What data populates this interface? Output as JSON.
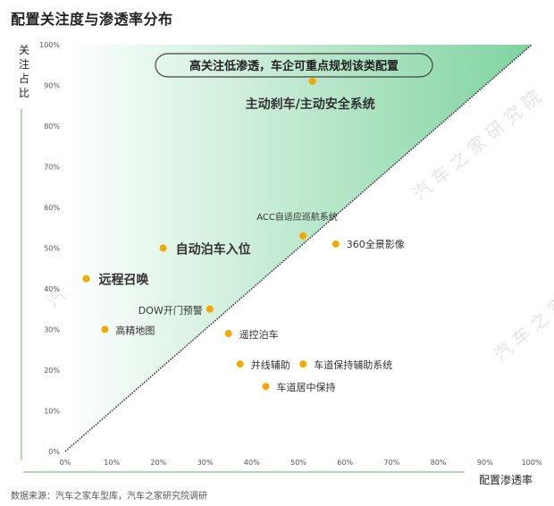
{
  "title": "配置关注度与渗透率分布",
  "source": "数据来源：汽车之家车型库，汽车之家研究院调研",
  "watermark": "汽 车 之 家 研 究 院",
  "colors": {
    "marker": "#f2a900",
    "gradient_light": "#ffffff",
    "gradient_dark": "#7fd3a0",
    "axis": "#6aa86a",
    "diagonal": "#333333"
  },
  "chart_data": {
    "type": "scatter",
    "title": "配置关注度与渗透率分布",
    "xlabel": "配置渗透率",
    "ylabel": "关注占比",
    "xlim": [
      0,
      100
    ],
    "ylim": [
      0,
      100
    ],
    "x_ticks": [
      "0%",
      "10%",
      "20%",
      "30%",
      "40%",
      "50%",
      "60%",
      "70%",
      "80%",
      "90%",
      "100%"
    ],
    "y_ticks": [
      "0%",
      "10%",
      "20%",
      "30%",
      "40%",
      "50%",
      "60%",
      "70%",
      "80%",
      "90%",
      "100%"
    ],
    "callout": "高关注低渗透，车企可重点规划该类配置",
    "points": [
      {
        "name": "主动刹车/主动安全系统",
        "x": 53,
        "y": 91,
        "bold": true
      },
      {
        "name": "ACC自适应巡航系统",
        "x": 51,
        "y": 53,
        "bold": false
      },
      {
        "name": "360全景影像",
        "x": 58,
        "y": 51,
        "bold": false
      },
      {
        "name": "自动泊车入位",
        "x": 21,
        "y": 50,
        "bold": true
      },
      {
        "name": "远程召唤",
        "x": 4.5,
        "y": 42.5,
        "bold": true
      },
      {
        "name": "DOW开门预警",
        "x": 31,
        "y": 35,
        "bold": false
      },
      {
        "name": "高精地图",
        "x": 8.5,
        "y": 30,
        "bold": false
      },
      {
        "name": "遥控泊车",
        "x": 35,
        "y": 29,
        "bold": false
      },
      {
        "name": "并线辅助",
        "x": 37.5,
        "y": 21.5,
        "bold": false
      },
      {
        "name": "车道保持辅助系统",
        "x": 51,
        "y": 21.5,
        "bold": false
      },
      {
        "name": "车道居中保持",
        "x": 43,
        "y": 16,
        "bold": false
      }
    ]
  }
}
